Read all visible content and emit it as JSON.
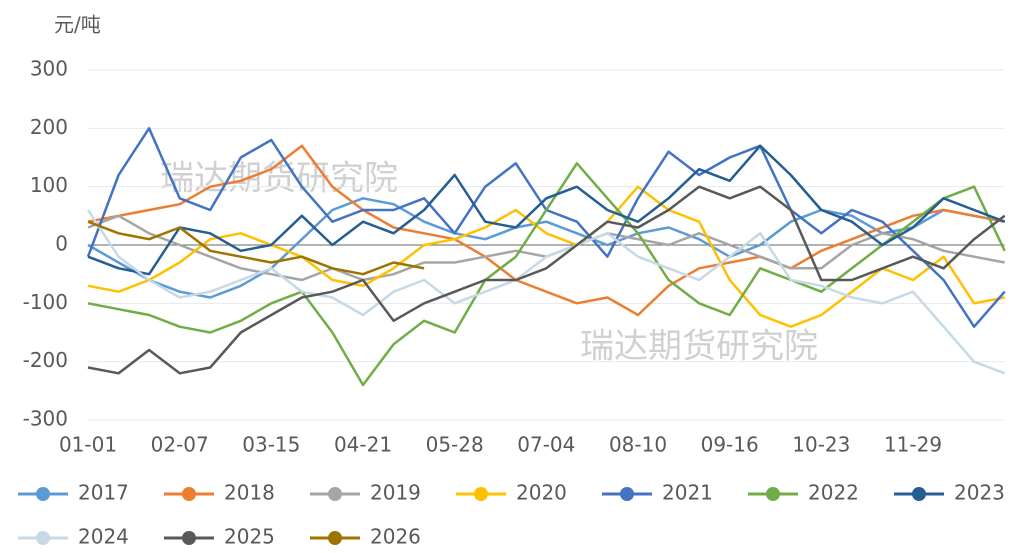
{
  "chart_data": {
    "type": "line",
    "y_unit": "元/吨",
    "watermarks": [
      "瑞达期货研究院",
      "瑞达期货研究院"
    ],
    "categories": [
      "01-01",
      null,
      null,
      "02-07",
      null,
      null,
      "03-15",
      null,
      null,
      "04-21",
      null,
      null,
      "05-28",
      null,
      null,
      "07-04",
      null,
      null,
      "08-10",
      null,
      null,
      "09-16",
      null,
      null,
      "10-23",
      null,
      null,
      "11-29",
      null,
      null,
      null
    ],
    "ylim": [
      -300,
      300
    ],
    "yticks": [
      -300,
      -200,
      -100,
      0,
      100,
      200,
      300
    ],
    "grid": true,
    "series": [
      {
        "name": "2017",
        "color": "#5b9bd5",
        "values": [
          0,
          -30,
          -60,
          -80,
          -90,
          -70,
          -40,
          10,
          60,
          80,
          70,
          40,
          20,
          10,
          30,
          40,
          20,
          0,
          20,
          30,
          10,
          -20,
          0,
          40,
          60,
          50,
          20,
          30,
          60,
          50,
          40
        ]
      },
      {
        "name": "2018",
        "color": "#ed7d31",
        "values": [
          40,
          50,
          60,
          70,
          100,
          110,
          130,
          170,
          100,
          60,
          30,
          20,
          10,
          -20,
          -60,
          -80,
          -100,
          -90,
          -120,
          -70,
          -40,
          -30,
          -20,
          -40,
          -10,
          10,
          30,
          50,
          60,
          50,
          40
        ]
      },
      {
        "name": "2019",
        "color": "#a5a5a5",
        "values": [
          30,
          50,
          20,
          0,
          -20,
          -40,
          -50,
          -60,
          -40,
          -60,
          -50,
          -30,
          -30,
          -20,
          -10,
          -20,
          0,
          20,
          10,
          0,
          20,
          0,
          -20,
          -40,
          -40,
          0,
          20,
          10,
          -10,
          -20,
          -30
        ]
      },
      {
        "name": "2020",
        "color": "#ffc000",
        "values": [
          -70,
          -80,
          -60,
          -30,
          10,
          20,
          0,
          -20,
          -60,
          -70,
          -40,
          0,
          10,
          30,
          60,
          20,
          0,
          40,
          100,
          60,
          40,
          -60,
          -120,
          -140,
          -120,
          -80,
          -40,
          -60,
          -20,
          -100,
          -90
        ]
      },
      {
        "name": "2021",
        "color": "#4472c4",
        "values": [
          -20,
          120,
          200,
          80,
          60,
          150,
          180,
          100,
          40,
          60,
          60,
          80,
          20,
          100,
          140,
          60,
          40,
          -20,
          80,
          160,
          120,
          150,
          170,
          60,
          20,
          60,
          40,
          -10,
          -60,
          -140,
          -80
        ]
      },
      {
        "name": "2022",
        "color": "#70ad47",
        "values": [
          -100,
          -110,
          -120,
          -140,
          -150,
          -130,
          -100,
          -80,
          -150,
          -240,
          -170,
          -130,
          -150,
          -60,
          -20,
          60,
          140,
          80,
          20,
          -60,
          -100,
          -120,
          -40,
          -60,
          -80,
          -40,
          0,
          40,
          80,
          100,
          -10
        ]
      },
      {
        "name": "2023",
        "color": "#255e91",
        "values": [
          -20,
          -40,
          -50,
          30,
          20,
          -10,
          0,
          50,
          0,
          40,
          20,
          60,
          120,
          40,
          30,
          80,
          100,
          60,
          40,
          80,
          130,
          110,
          170,
          120,
          60,
          40,
          0,
          30,
          80,
          60,
          40
        ]
      },
      {
        "name": "2024",
        "color": "#c5d9e6",
        "values": [
          60,
          -20,
          -60,
          -90,
          -80,
          -60,
          -40,
          -80,
          -90,
          -120,
          -80,
          -60,
          -100,
          -80,
          -60,
          -20,
          0,
          20,
          -20,
          -40,
          -60,
          -20,
          20,
          -60,
          -70,
          -90,
          -100,
          -80,
          -140,
          -200,
          -220
        ]
      },
      {
        "name": "2025",
        "color": "#595959",
        "values": [
          -210,
          -220,
          -180,
          -220,
          -210,
          -150,
          -120,
          -90,
          -80,
          -60,
          -130,
          -100,
          -80,
          -60,
          -60,
          -40,
          0,
          40,
          30,
          60,
          100,
          80,
          100,
          60,
          -60,
          -60,
          -40,
          -20,
          -40,
          10,
          50
        ]
      },
      {
        "name": "2026",
        "color": "#9e7400",
        "values": [
          40,
          20,
          10,
          30,
          -10,
          -20,
          -30,
          -20,
          -40,
          -50,
          -30,
          -40,
          null,
          null,
          null,
          null,
          null,
          null,
          null,
          null,
          null,
          null,
          null,
          null,
          null,
          null,
          null,
          null,
          null,
          null,
          null
        ]
      }
    ]
  }
}
